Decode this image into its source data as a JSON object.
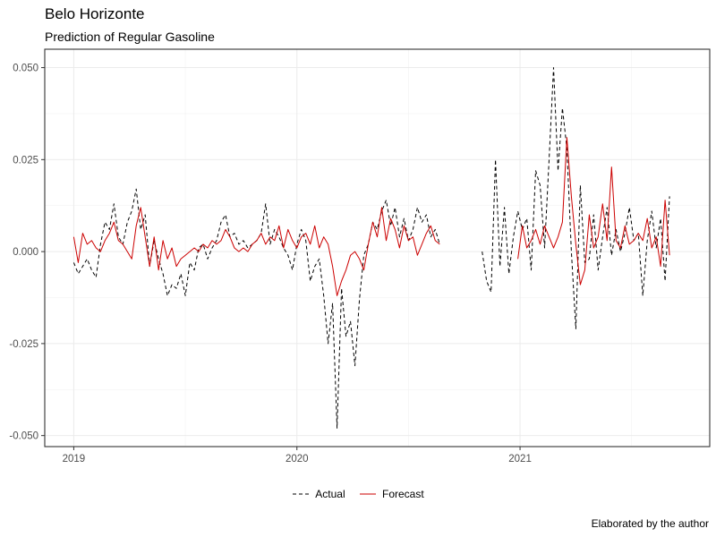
{
  "title": "Belo Horizonte",
  "subtitle": "Prediction of Regular Gasoline",
  "caption": "Elaborated by the author",
  "chart_data": {
    "type": "line",
    "title": "Belo Horizonte",
    "subtitle": "Prediction of Regular Gasoline",
    "xlabel": "",
    "ylabel": "",
    "xlim": [
      2018.87,
      2021.85
    ],
    "ylim": [
      -0.053,
      0.055
    ],
    "x_ticks": [
      2019,
      2020,
      2021
    ],
    "x_tick_labels": [
      "2019",
      "2020",
      "2021"
    ],
    "y_ticks": [
      -0.05,
      -0.025,
      0,
      0.025,
      0.05
    ],
    "y_tick_labels": [
      "-0.050",
      "-0.025",
      "0.000",
      "0.025",
      "0.050"
    ],
    "grid": true,
    "legend_position": "bottom",
    "series": [
      {
        "name": "Actual",
        "color": "#000000",
        "style": "dashed",
        "x": [
          2019.0,
          2019.02,
          2019.04,
          2019.06,
          2019.08,
          2019.1,
          2019.12,
          2019.14,
          2019.16,
          2019.18,
          2019.2,
          2019.22,
          2019.24,
          2019.26,
          2019.28,
          2019.3,
          2019.32,
          2019.34,
          2019.36,
          2019.38,
          2019.4,
          2019.42,
          2019.44,
          2019.46,
          2019.48,
          2019.5,
          2019.52,
          2019.54,
          2019.56,
          2019.58,
          2019.6,
          2019.62,
          2019.64,
          2019.66,
          2019.68,
          2019.7,
          2019.72,
          2019.74,
          2019.76,
          2019.78,
          2019.8,
          2019.82,
          2019.84,
          2019.86,
          2019.88,
          2019.9,
          2019.92,
          2019.94,
          2019.96,
          2019.98,
          2020.0,
          2020.02,
          2020.04,
          2020.06,
          2020.08,
          2020.1,
          2020.12,
          2020.14,
          2020.16,
          2020.18,
          2020.2,
          2020.22,
          2020.24,
          2020.26,
          2020.28,
          2020.3,
          2020.32,
          2020.34,
          2020.36,
          2020.38,
          2020.4,
          2020.42,
          2020.44,
          2020.46,
          2020.48,
          2020.5,
          2020.52,
          2020.54,
          2020.56,
          2020.58,
          2020.6,
          2020.62,
          2020.64,
          null,
          2020.83,
          2020.85,
          2020.87,
          2020.89,
          2020.91,
          2020.93,
          2020.95,
          2020.97,
          2020.99,
          2021.01,
          2021.03,
          2021.05,
          2021.07,
          2021.09,
          2021.11,
          2021.13,
          2021.15,
          2021.17,
          2021.19,
          2021.21,
          2021.23,
          2021.25,
          2021.27,
          2021.29,
          2021.31,
          2021.33,
          2021.35,
          2021.37,
          2021.39,
          2021.41,
          2021.43,
          2021.45,
          2021.47,
          2021.49,
          2021.51,
          2021.53,
          2021.55,
          2021.57,
          2021.59,
          2021.61,
          2021.63,
          2021.65,
          2021.67
        ],
        "values": [
          -0.003,
          -0.006,
          -0.004,
          -0.002,
          -0.005,
          -0.007,
          0.002,
          0.008,
          0.006,
          0.013,
          0.004,
          0.002,
          0.008,
          0.011,
          0.017,
          0.006,
          0.01,
          -0.004,
          0.003,
          -0.002,
          -0.006,
          -0.012,
          -0.009,
          -0.01,
          -0.006,
          -0.012,
          -0.003,
          -0.005,
          0.001,
          0.002,
          -0.002,
          0.001,
          0.003,
          0.008,
          0.01,
          0.004,
          0.005,
          0.002,
          0.003,
          0.001,
          0.002,
          0.003,
          0.005,
          0.013,
          0.002,
          0.006,
          0.004,
          0.001,
          -0.001,
          -0.005,
          0.002,
          0.006,
          0.003,
          -0.008,
          -0.004,
          -0.002,
          -0.012,
          -0.025,
          -0.014,
          -0.048,
          -0.01,
          -0.023,
          -0.019,
          -0.031,
          -0.013,
          -0.001,
          0.002,
          0.008,
          0.006,
          0.011,
          0.014,
          0.007,
          0.012,
          0.004,
          0.009,
          0.003,
          0.006,
          0.012,
          0.008,
          0.01,
          0.004,
          0.006,
          0.002,
          null,
          0.0,
          -0.008,
          -0.011,
          0.025,
          -0.004,
          0.012,
          -0.006,
          0.004,
          0.011,
          0.006,
          0.009,
          -0.005,
          0.022,
          0.018,
          0.001,
          0.025,
          0.05,
          0.022,
          0.039,
          0.028,
          0.0,
          -0.021,
          0.018,
          -0.003,
          -0.002,
          0.01,
          -0.005,
          0.004,
          0.012,
          -0.001,
          0.006,
          0.0,
          0.005,
          0.012,
          0.003,
          0.005,
          -0.012,
          0.003,
          0.011,
          0.001,
          0.009,
          -0.008,
          0.015
        ],
        "note_unused": ""
      },
      {
        "name": "Forecast",
        "color": "#cc0000",
        "style": "solid",
        "x": [
          2019.0,
          2019.02,
          2019.04,
          2019.06,
          2019.08,
          2019.1,
          2019.12,
          2019.14,
          2019.16,
          2019.18,
          2019.2,
          2019.22,
          2019.24,
          2019.26,
          2019.28,
          2019.3,
          2019.32,
          2019.34,
          2019.36,
          2019.38,
          2019.4,
          2019.42,
          2019.44,
          2019.46,
          2019.48,
          2019.5,
          2019.52,
          2019.54,
          2019.56,
          2019.58,
          2019.6,
          2019.62,
          2019.64,
          2019.66,
          2019.68,
          2019.7,
          2019.72,
          2019.74,
          2019.76,
          2019.78,
          2019.8,
          2019.82,
          2019.84,
          2019.86,
          2019.88,
          2019.9,
          2019.92,
          2019.94,
          2019.96,
          2019.98,
          2020.0,
          2020.02,
          2020.04,
          2020.06,
          2020.08,
          2020.1,
          2020.12,
          2020.14,
          2020.16,
          2020.18,
          2020.2,
          2020.22,
          2020.24,
          2020.26,
          2020.28,
          2020.3,
          2020.32,
          2020.34,
          2020.36,
          2020.38,
          2020.4,
          2020.42,
          2020.44,
          2020.46,
          2020.48,
          2020.5,
          2020.52,
          2020.54,
          2020.56,
          2020.58,
          2020.6,
          2020.62,
          2020.64,
          null,
          2020.99,
          2021.01,
          2021.03,
          2021.05,
          2021.07,
          2021.09,
          2021.11,
          2021.13,
          2021.15,
          2021.17,
          2021.19,
          2021.21,
          2021.23,
          2021.25,
          2021.27,
          2021.29,
          2021.31,
          2021.33,
          2021.35,
          2021.37,
          2021.39,
          2021.41,
          2021.43,
          2021.45,
          2021.47,
          2021.49,
          2021.51,
          2021.53,
          2021.55,
          2021.57,
          2021.59,
          2021.61,
          2021.63,
          2021.65,
          2021.67
        ],
        "values": [
          0.004,
          -0.003,
          0.005,
          0.002,
          0.003,
          0.001,
          0.0,
          0.003,
          0.005,
          0.008,
          0.003,
          0.002,
          0.0,
          -0.002,
          0.007,
          0.012,
          0.004,
          -0.004,
          0.004,
          -0.005,
          0.003,
          -0.002,
          0.001,
          -0.004,
          -0.002,
          -0.001,
          0.0,
          0.001,
          0.0,
          0.002,
          0.001,
          0.003,
          0.002,
          0.003,
          0.006,
          0.004,
          0.001,
          0.0,
          0.001,
          0.0,
          0.002,
          0.003,
          0.005,
          0.002,
          0.004,
          0.003,
          0.007,
          0.001,
          0.006,
          0.003,
          0.001,
          0.004,
          0.005,
          0.002,
          0.007,
          0.001,
          0.004,
          0.002,
          -0.004,
          -0.012,
          -0.008,
          -0.005,
          -0.001,
          0.0,
          -0.002,
          -0.005,
          0.002,
          0.008,
          0.004,
          0.012,
          0.003,
          0.009,
          0.006,
          0.001,
          0.007,
          0.003,
          0.004,
          -0.001,
          0.002,
          0.005,
          0.007,
          0.003,
          0.002,
          null,
          -0.002,
          0.007,
          0.001,
          0.003,
          0.006,
          0.002,
          0.007,
          0.004,
          0.001,
          0.004,
          0.008,
          0.031,
          0.015,
          0.002,
          -0.009,
          -0.005,
          0.01,
          0.001,
          0.004,
          0.013,
          0.003,
          0.023,
          0.003,
          0.001,
          0.007,
          0.002,
          0.003,
          0.005,
          0.003,
          0.009,
          0.001,
          0.004,
          -0.004,
          0.014,
          -0.001
        ],
        "note_unused": ""
      }
    ]
  }
}
